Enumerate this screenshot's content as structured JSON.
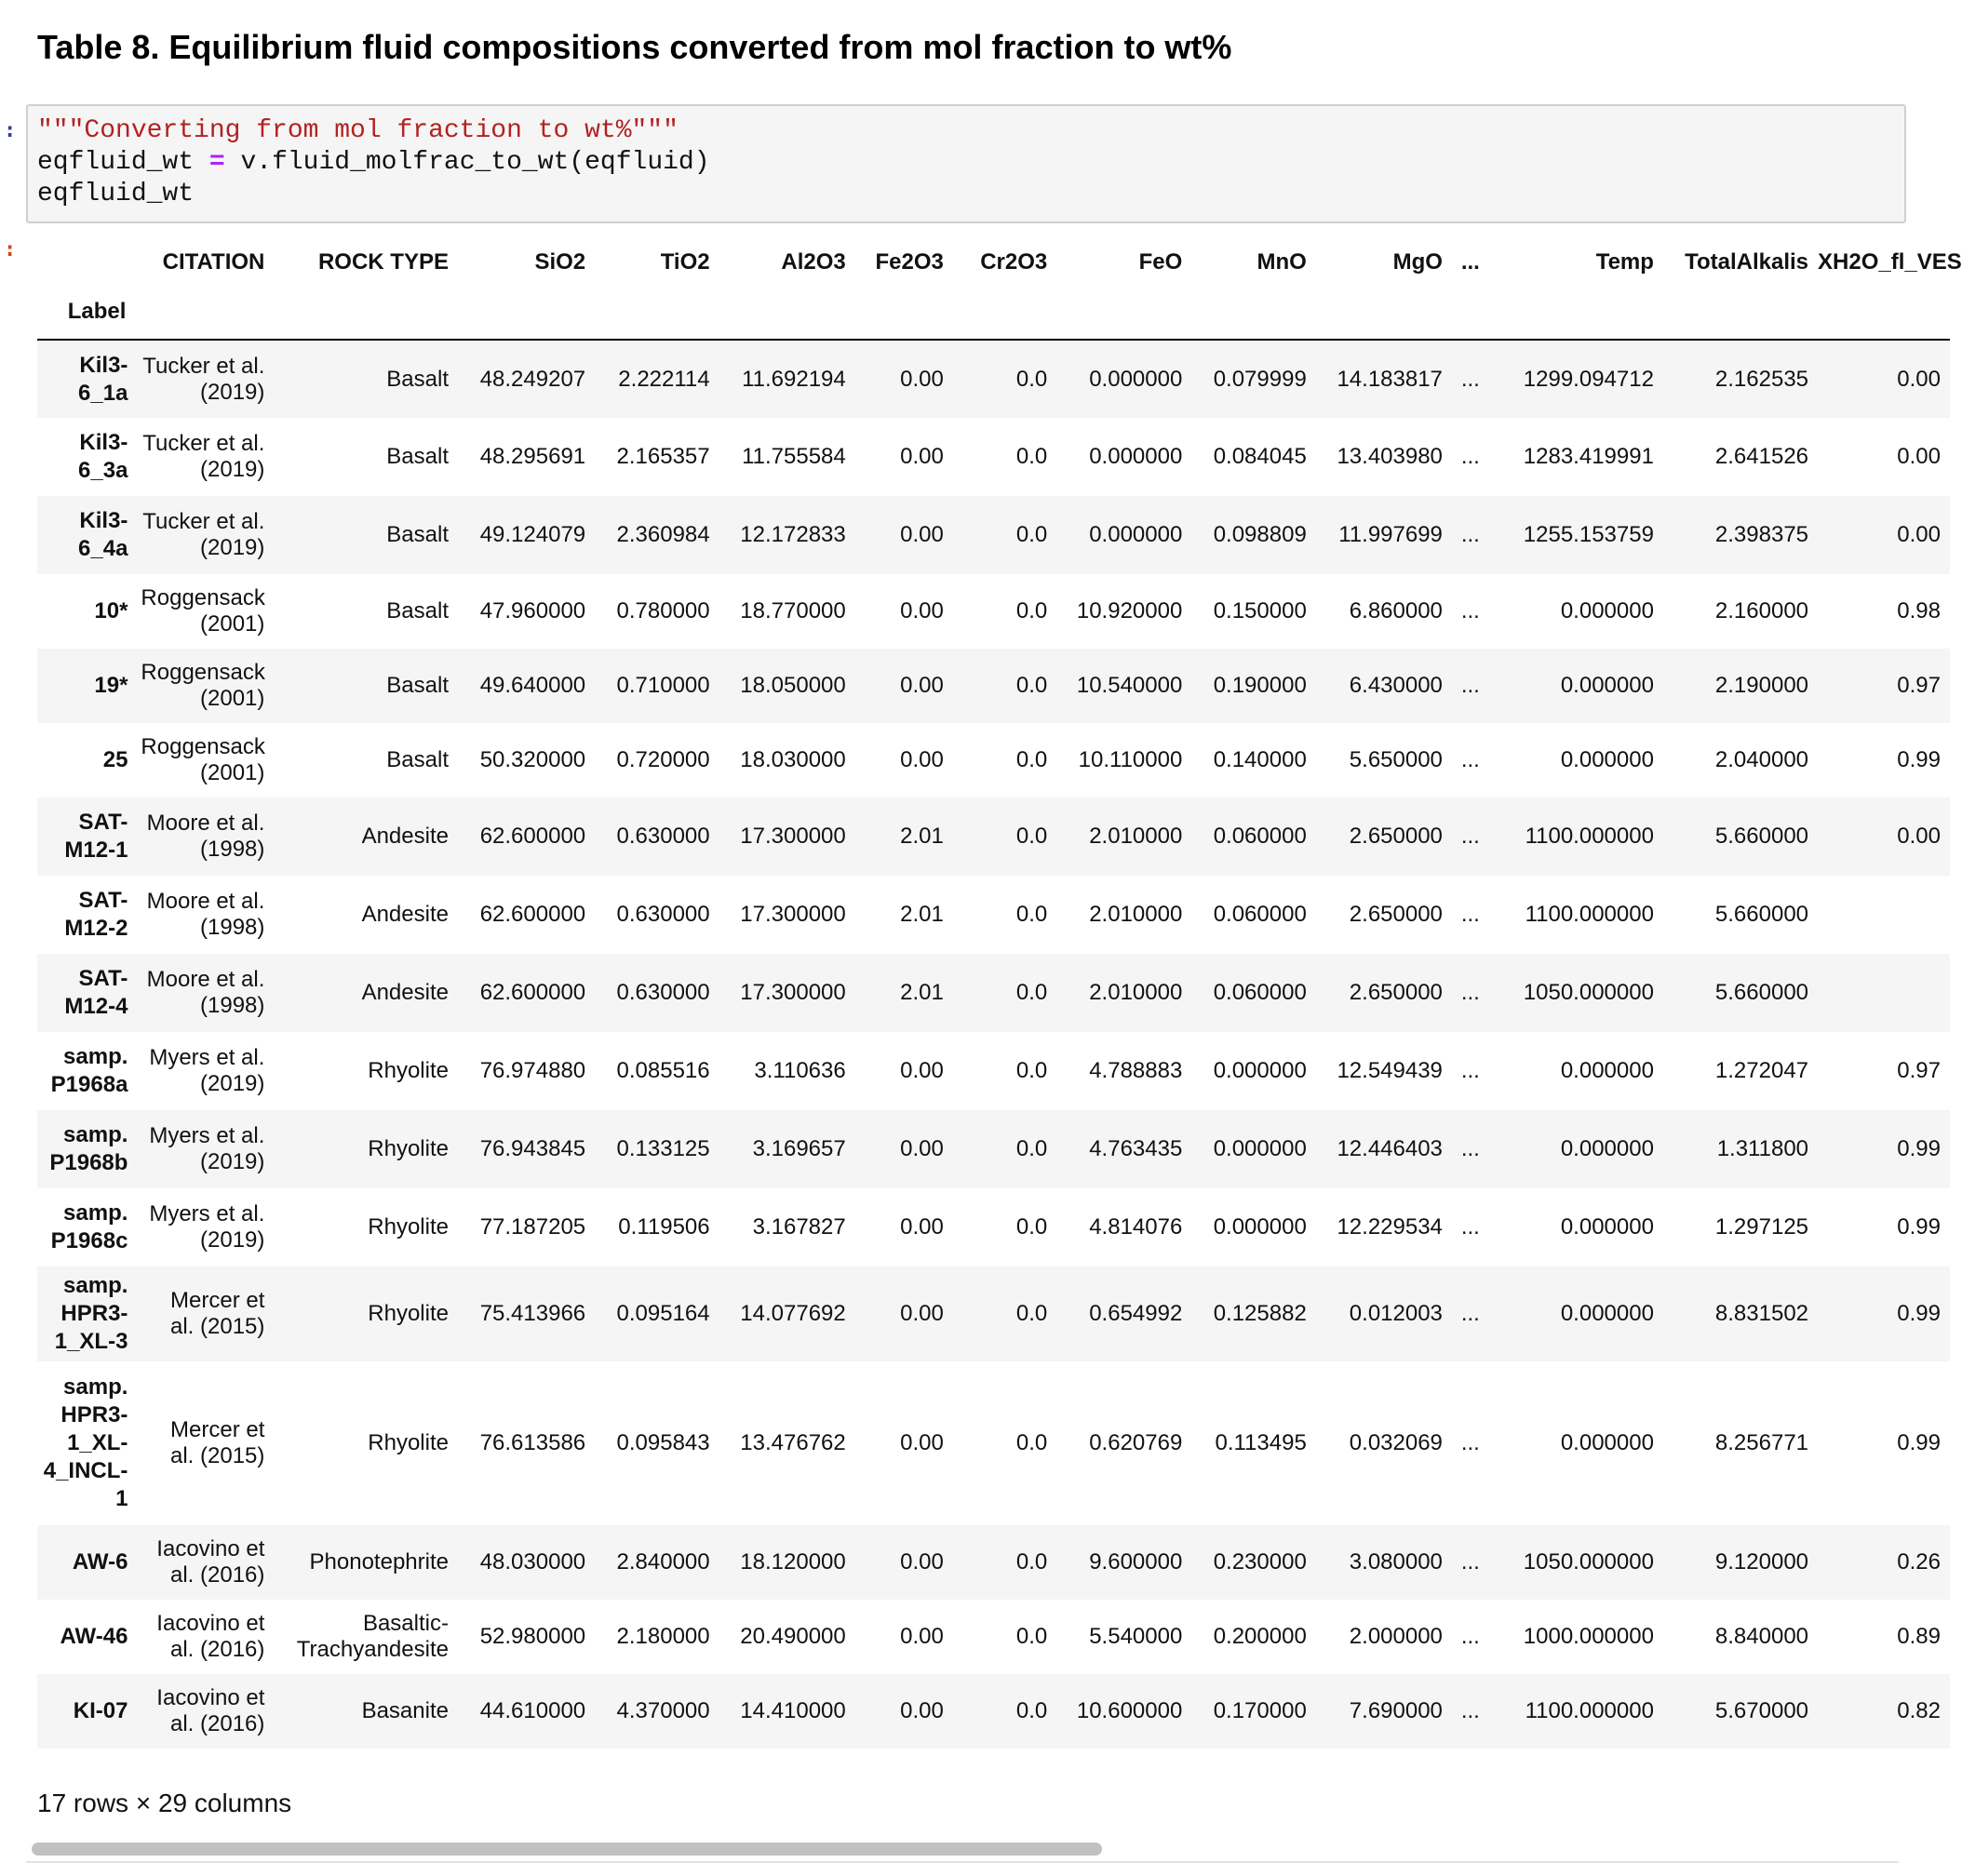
{
  "title": "Table 8. Equilibrium fluid compositions converted from mol fraction to wt%",
  "prompts": {
    "input": ":",
    "output": ":"
  },
  "code": {
    "line1": "\"\"\"Converting from mol fraction to wt%\"\"\"",
    "line2_var": "eqfluid_wt ",
    "line2_op": "=",
    "line2_rest": " v.fluid_molfrac_to_wt(eqfluid)",
    "line3": "eqfluid_wt"
  },
  "table": {
    "index_name": "Label",
    "columns": [
      "CITATION",
      "ROCK TYPE",
      "SiO2",
      "TiO2",
      "Al2O3",
      "Fe2O3",
      "Cr2O3",
      "FeO",
      "MnO",
      "MgO",
      "...",
      "Temp",
      "TotalAlkalis",
      "XH2O_fl_VES"
    ],
    "rows": [
      {
        "label": "Kil3-6_1a",
        "cells": [
          "Tucker et al. (2019)",
          "Basalt",
          "48.249207",
          "2.222114",
          "11.692194",
          "0.00",
          "0.0",
          "0.000000",
          "0.079999",
          "14.183817",
          "...",
          "1299.094712",
          "2.162535",
          "0.00"
        ]
      },
      {
        "label": "Kil3-6_3a",
        "cells": [
          "Tucker et al. (2019)",
          "Basalt",
          "48.295691",
          "2.165357",
          "11.755584",
          "0.00",
          "0.0",
          "0.000000",
          "0.084045",
          "13.403980",
          "...",
          "1283.419991",
          "2.641526",
          "0.00"
        ]
      },
      {
        "label": "Kil3-6_4a",
        "cells": [
          "Tucker et al. (2019)",
          "Basalt",
          "49.124079",
          "2.360984",
          "12.172833",
          "0.00",
          "0.0",
          "0.000000",
          "0.098809",
          "11.997699",
          "...",
          "1255.153759",
          "2.398375",
          "0.00"
        ]
      },
      {
        "label": "10*",
        "cells": [
          "Roggensack (2001)",
          "Basalt",
          "47.960000",
          "0.780000",
          "18.770000",
          "0.00",
          "0.0",
          "10.920000",
          "0.150000",
          "6.860000",
          "...",
          "0.000000",
          "2.160000",
          "0.98"
        ]
      },
      {
        "label": "19*",
        "cells": [
          "Roggensack (2001)",
          "Basalt",
          "49.640000",
          "0.710000",
          "18.050000",
          "0.00",
          "0.0",
          "10.540000",
          "0.190000",
          "6.430000",
          "...",
          "0.000000",
          "2.190000",
          "0.97"
        ]
      },
      {
        "label": "25",
        "cells": [
          "Roggensack (2001)",
          "Basalt",
          "50.320000",
          "0.720000",
          "18.030000",
          "0.00",
          "0.0",
          "10.110000",
          "0.140000",
          "5.650000",
          "...",
          "0.000000",
          "2.040000",
          "0.99"
        ]
      },
      {
        "label": "SAT-M12-1",
        "cells": [
          "Moore et al. (1998)",
          "Andesite",
          "62.600000",
          "0.630000",
          "17.300000",
          "2.01",
          "0.0",
          "2.010000",
          "0.060000",
          "2.650000",
          "...",
          "1100.000000",
          "5.660000",
          "0.00"
        ]
      },
      {
        "label": "SAT-M12-2",
        "cells": [
          "Moore et al. (1998)",
          "Andesite",
          "62.600000",
          "0.630000",
          "17.300000",
          "2.01",
          "0.0",
          "2.010000",
          "0.060000",
          "2.650000",
          "...",
          "1100.000000",
          "5.660000",
          ""
        ]
      },
      {
        "label": "SAT-M12-4",
        "cells": [
          "Moore et al. (1998)",
          "Andesite",
          "62.600000",
          "0.630000",
          "17.300000",
          "2.01",
          "0.0",
          "2.010000",
          "0.060000",
          "2.650000",
          "...",
          "1050.000000",
          "5.660000",
          ""
        ]
      },
      {
        "label": "samp. P1968a",
        "cells": [
          "Myers et al. (2019)",
          "Rhyolite",
          "76.974880",
          "0.085516",
          "3.110636",
          "0.00",
          "0.0",
          "4.788883",
          "0.000000",
          "12.549439",
          "...",
          "0.000000",
          "1.272047",
          "0.97"
        ]
      },
      {
        "label": "samp. P1968b",
        "cells": [
          "Myers et al. (2019)",
          "Rhyolite",
          "76.943845",
          "0.133125",
          "3.169657",
          "0.00",
          "0.0",
          "4.763435",
          "0.000000",
          "12.446403",
          "...",
          "0.000000",
          "1.311800",
          "0.99"
        ]
      },
      {
        "label": "samp. P1968c",
        "cells": [
          "Myers et al. (2019)",
          "Rhyolite",
          "77.187205",
          "0.119506",
          "3.167827",
          "0.00",
          "0.0",
          "4.814076",
          "0.000000",
          "12.229534",
          "...",
          "0.000000",
          "1.297125",
          "0.99"
        ]
      },
      {
        "label": "samp. HPR3-1_XL-3",
        "cells": [
          "Mercer et al. (2015)",
          "Rhyolite",
          "75.413966",
          "0.095164",
          "14.077692",
          "0.00",
          "0.0",
          "0.654992",
          "0.125882",
          "0.012003",
          "...",
          "0.000000",
          "8.831502",
          "0.99"
        ]
      },
      {
        "label": "samp. HPR3-1_XL-4_INCL-1",
        "cells": [
          "Mercer et al. (2015)",
          "Rhyolite",
          "76.613586",
          "0.095843",
          "13.476762",
          "0.00",
          "0.0",
          "0.620769",
          "0.113495",
          "0.032069",
          "...",
          "0.000000",
          "8.256771",
          "0.99"
        ]
      },
      {
        "label": "AW-6",
        "cells": [
          "Iacovino et al. (2016)",
          "Phonotephrite",
          "48.030000",
          "2.840000",
          "18.120000",
          "0.00",
          "0.0",
          "9.600000",
          "0.230000",
          "3.080000",
          "...",
          "1050.000000",
          "9.120000",
          "0.26"
        ]
      },
      {
        "label": "AW-46",
        "cells": [
          "Iacovino et al. (2016)",
          "Basaltic-Trachyandesite",
          "52.980000",
          "2.180000",
          "20.490000",
          "0.00",
          "0.0",
          "5.540000",
          "0.200000",
          "2.000000",
          "...",
          "1000.000000",
          "8.840000",
          "0.89"
        ]
      },
      {
        "label": "KI-07",
        "cells": [
          "Iacovino et al. (2016)",
          "Basanite",
          "44.610000",
          "4.370000",
          "14.410000",
          "0.00",
          "0.0",
          "10.600000",
          "0.170000",
          "7.690000",
          "...",
          "1100.000000",
          "5.670000",
          "0.82"
        ]
      }
    ],
    "shape_text": "17 rows × 29 columns"
  }
}
